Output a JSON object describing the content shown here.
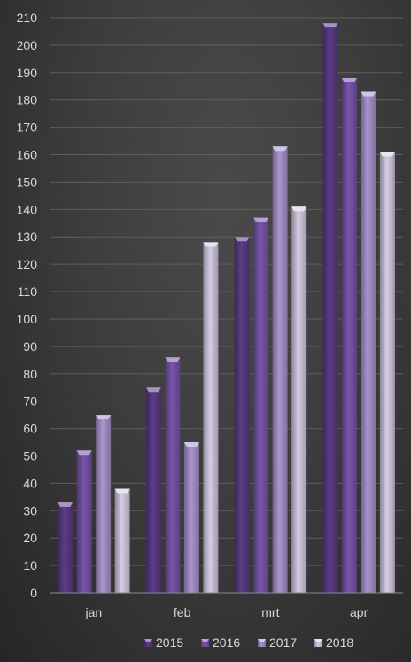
{
  "chart_data": {
    "type": "bar",
    "title": "",
    "xlabel": "",
    "ylabel": "",
    "categories": [
      "jan",
      "feb",
      "mrt",
      "apr"
    ],
    "series": [
      {
        "name": "2015",
        "values": [
          33,
          75,
          130,
          208
        ],
        "color": "#5b3d87"
      },
      {
        "name": "2016",
        "values": [
          52,
          86,
          137,
          188
        ],
        "color": "#7a55ad"
      },
      {
        "name": "2017",
        "values": [
          65,
          55,
          163,
          183
        ],
        "color": "#ab95cf"
      },
      {
        "name": "2018",
        "values": [
          38,
          128,
          141,
          161
        ],
        "color": "#d6cde5"
      }
    ],
    "ylim": [
      0,
      210
    ],
    "yticks": [
      "0",
      "10",
      "20",
      "30",
      "40",
      "50",
      "60",
      "70",
      "80",
      "90",
      "100",
      "110",
      "120",
      "130",
      "140",
      "150",
      "160",
      "170",
      "180",
      "190",
      "200",
      "210"
    ],
    "grid": true,
    "legend_position": "bottom"
  }
}
